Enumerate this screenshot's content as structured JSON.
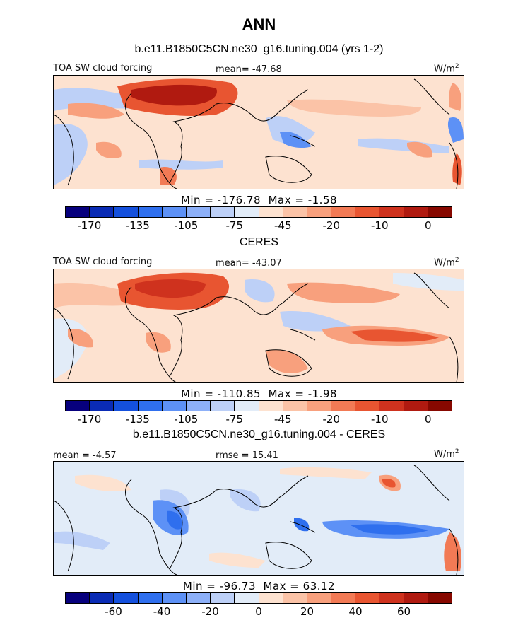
{
  "title": "ANN",
  "panels": [
    {
      "heading": "b.e11.B1850C5CN.ne30_g16.tuning.004 (yrs 1-2)",
      "left_label": "TOA SW cloud forcing",
      "center_label": "mean= -47.68",
      "units": "W/m",
      "units_sup": "2",
      "min_label": "Min = -176.78",
      "max_label": "Max =  -1.58",
      "colorbar_colors": [
        "#07007d",
        "#0a2bb5",
        "#1450dd",
        "#2f6fee",
        "#5d91f6",
        "#8db0f8",
        "#bdd0f7",
        "#e2ecf8",
        "#fde2d0",
        "#fbc3a7",
        "#f8a07d",
        "#f27a55",
        "#e85531",
        "#cf321e",
        "#b01a10",
        "#870800"
      ],
      "tick_labels": [
        "-170",
        "-135",
        "-105",
        "-75",
        "-45",
        "-20",
        "-10",
        "0"
      ],
      "tick_positions": [
        1,
        3,
        5,
        7,
        9,
        11,
        13,
        15
      ]
    },
    {
      "heading": "CERES",
      "left_label": "TOA SW cloud forcing",
      "center_label": "mean= -43.07",
      "units": "W/m",
      "units_sup": "2",
      "min_label": "Min = -110.85",
      "max_label": "Max =  -1.98",
      "colorbar_colors": [
        "#07007d",
        "#0a2bb5",
        "#1450dd",
        "#2f6fee",
        "#5d91f6",
        "#8db0f8",
        "#bdd0f7",
        "#e2ecf8",
        "#fde2d0",
        "#fbc3a7",
        "#f8a07d",
        "#f27a55",
        "#e85531",
        "#cf321e",
        "#b01a10",
        "#870800"
      ],
      "tick_labels": [
        "-170",
        "-135",
        "-105",
        "-75",
        "-45",
        "-20",
        "-10",
        "0"
      ],
      "tick_positions": [
        1,
        3,
        5,
        7,
        9,
        11,
        13,
        15
      ]
    },
    {
      "heading": "b.e11.B1850C5CN.ne30_g16.tuning.004 - CERES",
      "left_label": "mean =  -4.57",
      "center_label": "rmse =  15.41",
      "units": "W/m",
      "units_sup": "2",
      "min_label": "Min = -96.73",
      "max_label": "Max =  63.12",
      "colorbar_colors": [
        "#07007d",
        "#0a2bb5",
        "#1450dd",
        "#2f6fee",
        "#5d91f6",
        "#8db0f8",
        "#bdd0f7",
        "#e2ecf8",
        "#fde2d0",
        "#fbc3a7",
        "#f8a07d",
        "#f27a55",
        "#e85531",
        "#cf321e",
        "#b01a10",
        "#870800"
      ],
      "tick_labels": [
        "-60",
        "-40",
        "-20",
        "0",
        "20",
        "40",
        "60"
      ],
      "tick_positions": [
        2,
        4,
        6,
        8,
        10,
        12,
        14
      ]
    }
  ],
  "chart_data": {
    "type": "heatmap",
    "title": "ANN",
    "maps": [
      {
        "name": "b.e11.B1850C5CN.ne30_g16.tuning.004 (yrs 1-2)",
        "variable": "TOA SW cloud forcing",
        "mean": -47.68,
        "min": -176.78,
        "max": -1.58,
        "levels": [
          -170,
          -150,
          -135,
          -120,
          -105,
          -90,
          -75,
          -60,
          -45,
          -30,
          -20,
          -15,
          -10,
          -5,
          0
        ]
      },
      {
        "name": "CERES",
        "variable": "TOA SW cloud forcing",
        "mean": -43.07,
        "min": -110.85,
        "max": -1.98,
        "levels": [
          -170,
          -150,
          -135,
          -120,
          -105,
          -90,
          -75,
          -60,
          -45,
          -30,
          -20,
          -15,
          -10,
          -5,
          0
        ]
      },
      {
        "name": "b.e11.B1850C5CN.ne30_g16.tuning.004 - CERES",
        "mean": -4.57,
        "rmse": 15.41,
        "min": -96.73,
        "max": 63.12,
        "levels": [
          -70,
          -60,
          -50,
          -40,
          -30,
          -20,
          -10,
          0,
          10,
          20,
          30,
          40,
          50,
          60,
          70
        ]
      }
    ]
  }
}
